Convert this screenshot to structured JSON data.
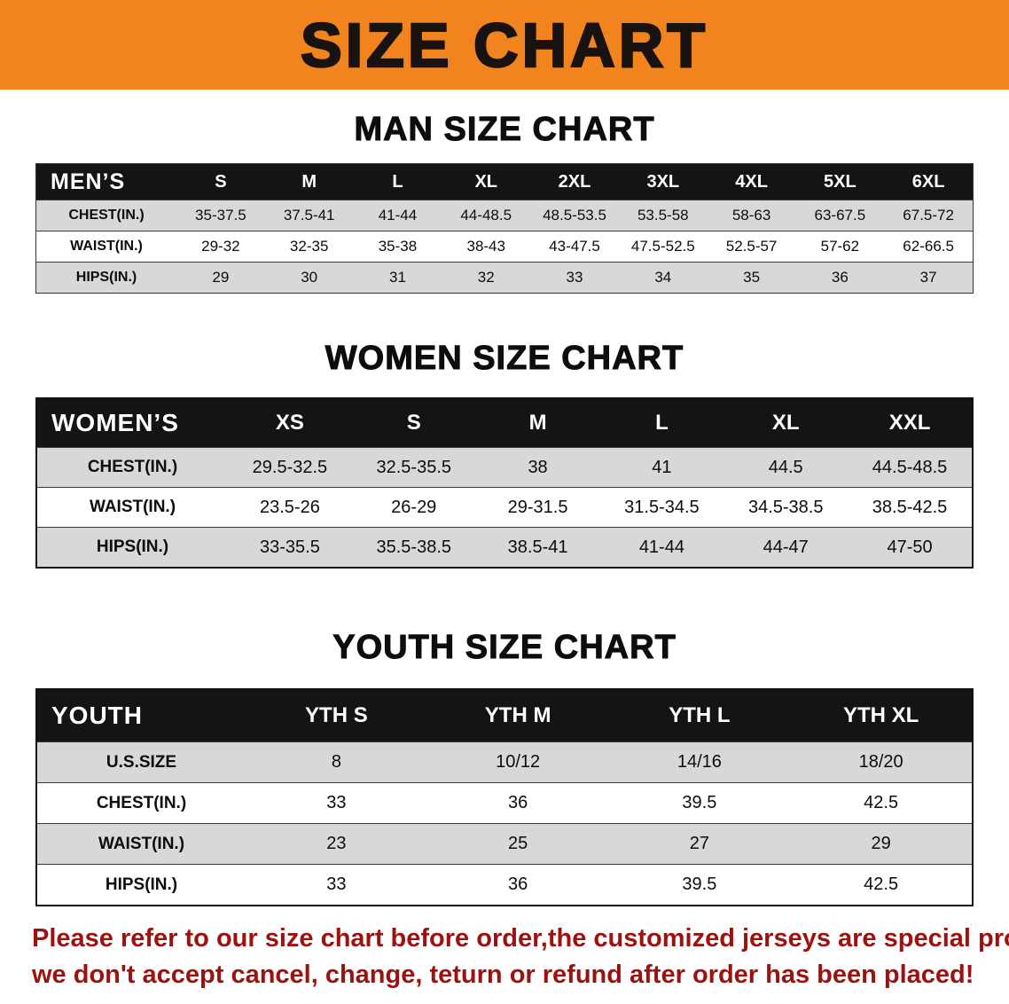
{
  "banner": {
    "title": "SIZE CHART"
  },
  "chart_data": [
    {
      "type": "table",
      "title": "MAN SIZE CHART",
      "corner_label": "MEN’S",
      "columns": [
        "S",
        "M",
        "L",
        "XL",
        "2XL",
        "3XL",
        "4XL",
        "5XL",
        "6XL"
      ],
      "rows": [
        {
          "label": "CHEST(IN.)",
          "values": [
            "35-37.5",
            "37.5-41",
            "41-44",
            "44-48.5",
            "48.5-53.5",
            "53.5-58",
            "58-63",
            "63-67.5",
            "67.5-72"
          ]
        },
        {
          "label": "WAIST(IN.)",
          "values": [
            "29-32",
            "32-35",
            "35-38",
            "38-43",
            "43-47.5",
            "47.5-52.5",
            "52.5-57",
            "57-62",
            "62-66.5"
          ]
        },
        {
          "label": "HIPS(IN.)",
          "values": [
            "29",
            "30",
            "31",
            "32",
            "33",
            "34",
            "35",
            "36",
            "37"
          ]
        }
      ]
    },
    {
      "type": "table",
      "title": "WOMEN SIZE CHART",
      "corner_label": "WOMEN’S",
      "columns": [
        "XS",
        "S",
        "M",
        "L",
        "XL",
        "XXL"
      ],
      "rows": [
        {
          "label": "CHEST(IN.)",
          "values": [
            "29.5-32.5",
            "32.5-35.5",
            "38",
            "41",
            "44.5",
            "44.5-48.5"
          ]
        },
        {
          "label": "WAIST(IN.)",
          "values": [
            "23.5-26",
            "26-29",
            "29-31.5",
            "31.5-34.5",
            "34.5-38.5",
            "38.5-42.5"
          ]
        },
        {
          "label": "HIPS(IN.)",
          "values": [
            "33-35.5",
            "35.5-38.5",
            "38.5-41",
            "41-44",
            "44-47",
            "47-50"
          ]
        }
      ]
    },
    {
      "type": "table",
      "title": "YOUTH SIZE CHART",
      "corner_label": "YOUTH",
      "columns": [
        "YTH S",
        "YTH M",
        "YTH L",
        "YTH XL"
      ],
      "rows": [
        {
          "label": "U.S.SIZE",
          "values": [
            "8",
            "10/12",
            "14/16",
            "18/20"
          ]
        },
        {
          "label": "CHEST(IN.)",
          "values": [
            "33",
            "36",
            "39.5",
            "42.5"
          ]
        },
        {
          "label": "WAIST(IN.)",
          "values": [
            "23",
            "25",
            "27",
            "29"
          ]
        },
        {
          "label": "HIPS(IN.)",
          "values": [
            "33",
            "36",
            "39.5",
            "42.5"
          ]
        }
      ]
    }
  ],
  "footer": {
    "line1": "Please refer to our size chart before order,the customized jerseys are special products,",
    "line2": "we don't accept cancel, change, teturn or refund after order has been placed!"
  },
  "colors": {
    "banner_bg": "#f28420",
    "table_header_bg": "#141414",
    "row_shaded": "#d8d8d8",
    "footer_text": "#9c1210"
  }
}
